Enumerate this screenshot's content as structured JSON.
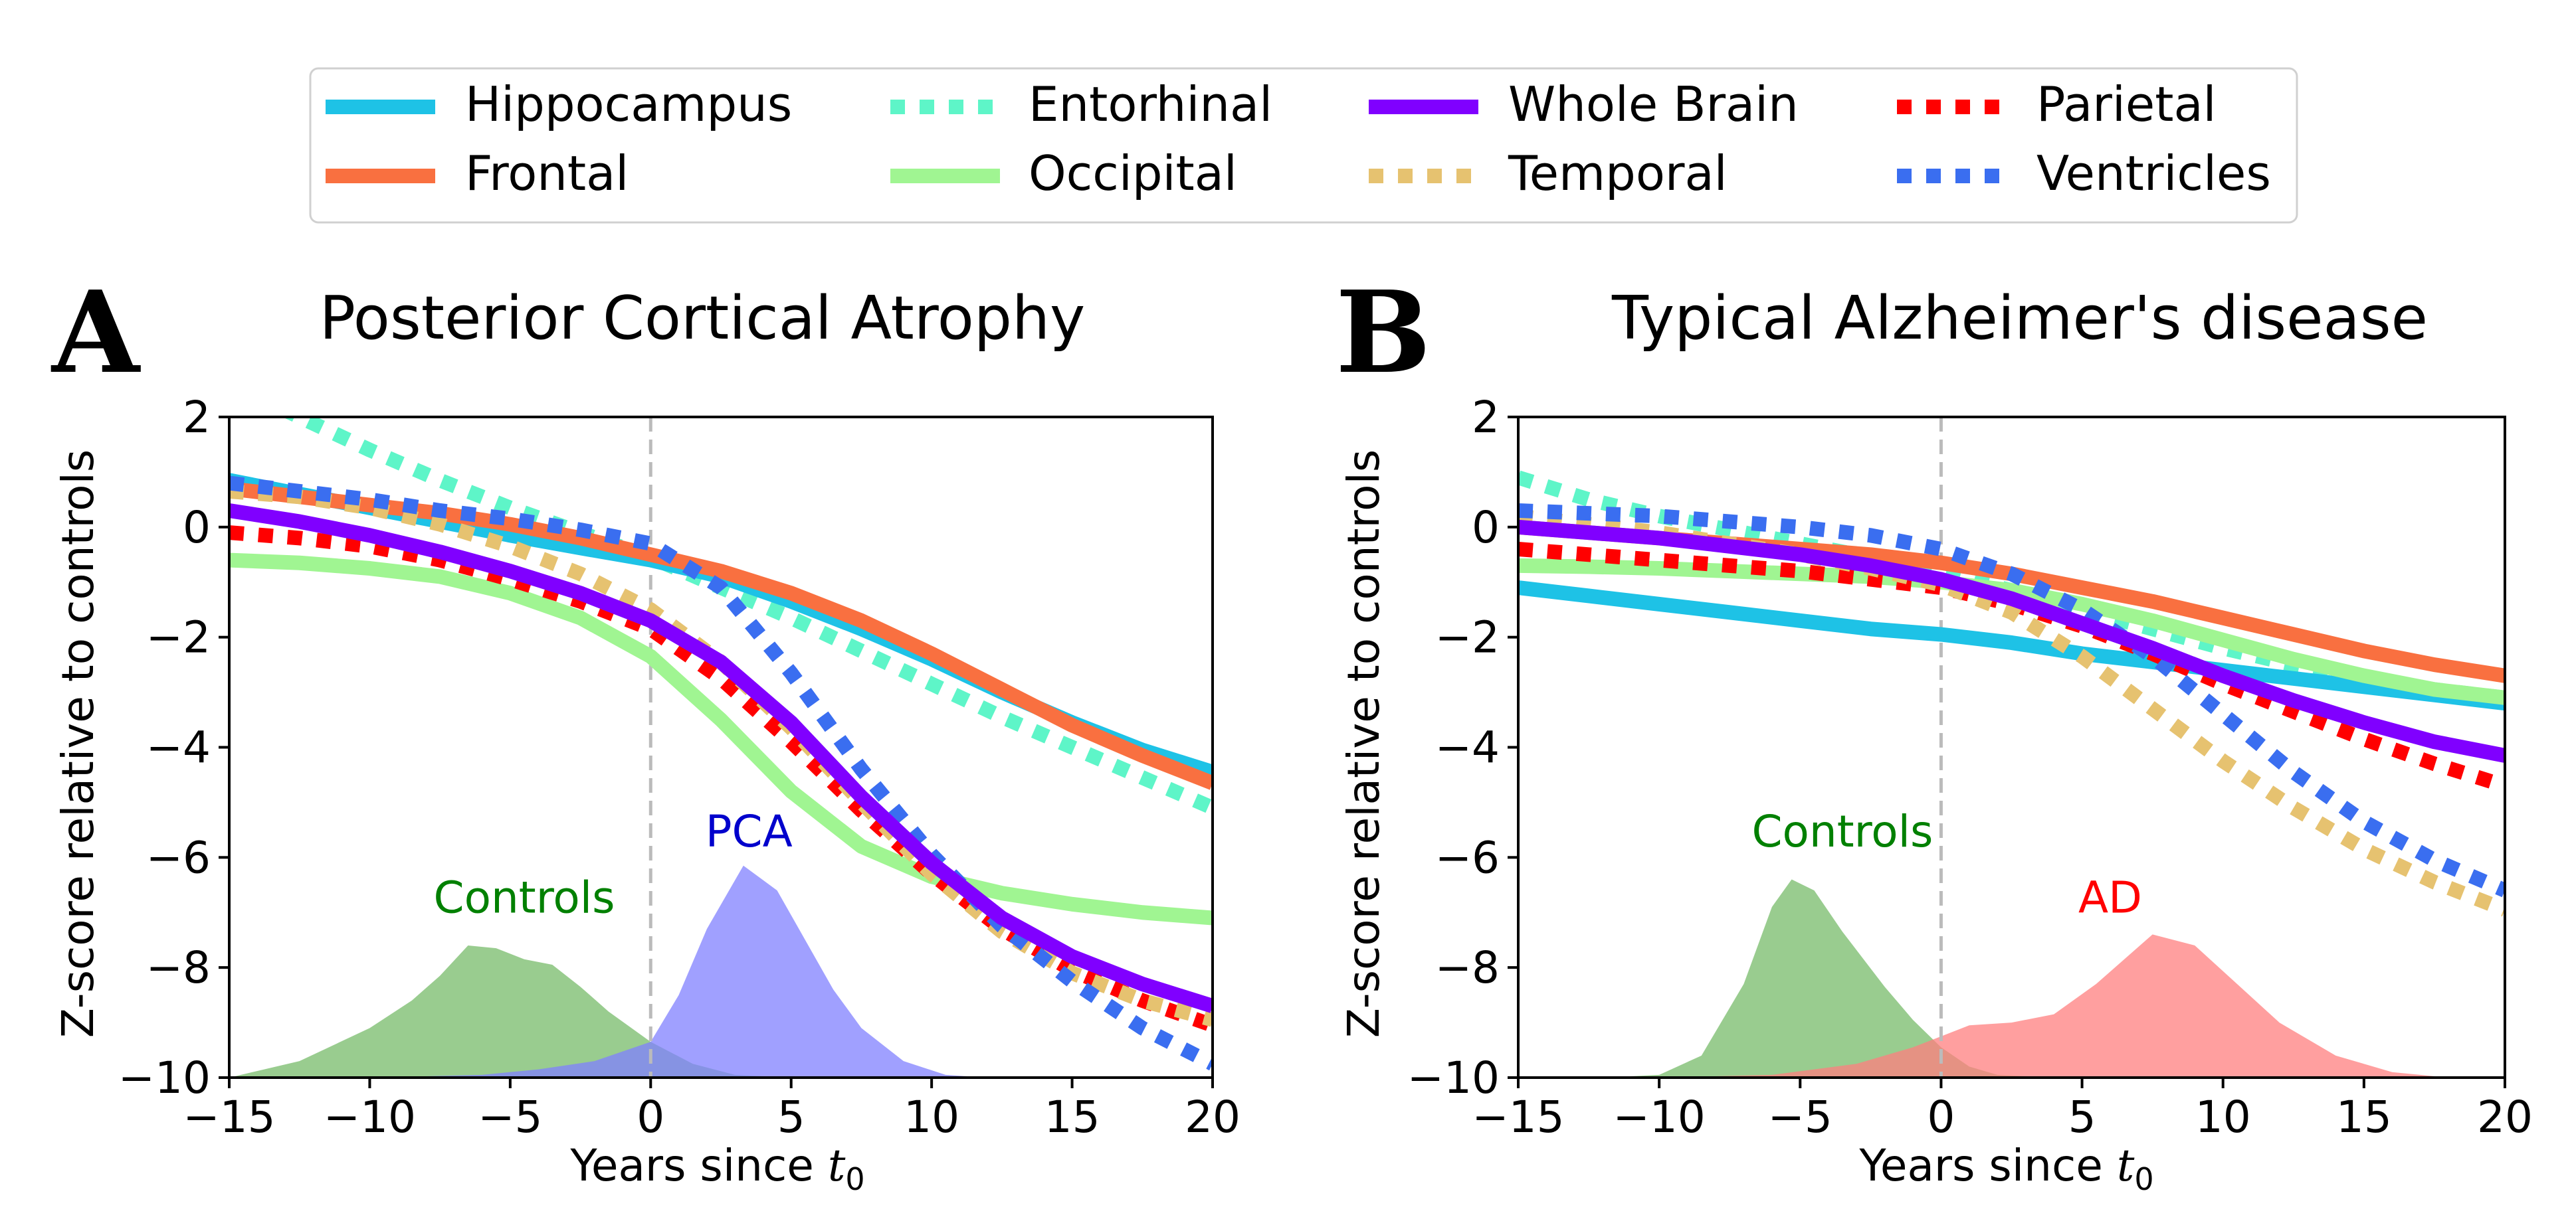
{
  "legend": {
    "placement": "top",
    "entries": [
      {
        "name": "Hippocampus",
        "color": "#1ec2e6",
        "style": "solid"
      },
      {
        "name": "Entorhinal",
        "color": "#5ef5c8",
        "style": "dotted"
      },
      {
        "name": "Whole Brain",
        "color": "#8000ff",
        "style": "solid"
      },
      {
        "name": "Parietal",
        "color": "#ff0000",
        "style": "dotted"
      },
      {
        "name": "Frontal",
        "color": "#f97040",
        "style": "solid"
      },
      {
        "name": "Occipital",
        "color": "#a0f592",
        "style": "solid"
      },
      {
        "name": "Temporal",
        "color": "#e6c270",
        "style": "dotted"
      },
      {
        "name": "Ventricles",
        "color": "#3a6ef0",
        "style": "dotted"
      }
    ]
  },
  "chart_data": [
    {
      "type": "line",
      "panel_letter": "A",
      "title": "Posterior Cortical Atrophy",
      "xlabel": "Years since ",
      "xlabel_math": "t",
      "xlabel_sub": "0",
      "ylabel": "Z-score relative to controls",
      "xlim": [
        -15,
        20
      ],
      "ylim": [
        -10,
        2
      ],
      "xticks": [
        -15,
        -10,
        -5,
        0,
        5,
        10,
        15,
        20
      ],
      "yticks": [
        -10,
        -8,
        -6,
        -4,
        -2,
        0,
        2
      ],
      "xtick_labels": [
        "−15",
        "−10",
        "−5",
        "0",
        "5",
        "10",
        "15",
        "20"
      ],
      "ytick_labels": [
        "−10",
        "−8",
        "−6",
        "−4",
        "−2",
        "0",
        "2"
      ],
      "vline": {
        "x": 0,
        "color": "#bbbbbb",
        "style": "dashed"
      },
      "x": [
        -15,
        -12.5,
        -10,
        -7.5,
        -5,
        -2.5,
        0,
        2.5,
        5,
        7.5,
        10,
        12.5,
        15,
        17.5,
        20
      ],
      "series": [
        {
          "name": "Entorhinal",
          "color": "#5ef5c8",
          "style": "dotted",
          "values": [
            2.6,
            2.0,
            1.4,
            0.85,
            0.35,
            -0.1,
            -0.55,
            -1.1,
            -1.65,
            -2.25,
            -2.85,
            -3.45,
            -4.0,
            -4.55,
            -5.1
          ]
        },
        {
          "name": "Hippocampus",
          "color": "#1ec2e6",
          "style": "solid",
          "values": [
            0.85,
            0.6,
            0.35,
            0.1,
            -0.15,
            -0.38,
            -0.6,
            -0.9,
            -1.35,
            -1.85,
            -2.4,
            -3.0,
            -3.55,
            -4.05,
            -4.45
          ]
        },
        {
          "name": "Frontal",
          "color": "#f97040",
          "style": "solid",
          "values": [
            0.7,
            0.55,
            0.4,
            0.25,
            0.05,
            -0.2,
            -0.5,
            -0.8,
            -1.2,
            -1.7,
            -2.3,
            -2.95,
            -3.6,
            -4.15,
            -4.65
          ]
        },
        {
          "name": "Occipital",
          "color": "#a0f592",
          "style": "solid",
          "values": [
            -0.6,
            -0.65,
            -0.75,
            -0.9,
            -1.2,
            -1.65,
            -2.35,
            -3.5,
            -4.8,
            -5.8,
            -6.35,
            -6.65,
            -6.85,
            -7.0,
            -7.1
          ]
        },
        {
          "name": "Parietal",
          "color": "#ff0000",
          "style": "dotted",
          "values": [
            -0.1,
            -0.2,
            -0.35,
            -0.6,
            -0.95,
            -1.35,
            -1.85,
            -2.75,
            -3.9,
            -5.15,
            -6.3,
            -7.3,
            -8.05,
            -8.6,
            -9.05
          ]
        },
        {
          "name": "Temporal",
          "color": "#e6c270",
          "style": "dotted",
          "values": [
            0.65,
            0.55,
            0.35,
            0.05,
            -0.35,
            -0.85,
            -1.5,
            -2.45,
            -3.65,
            -5.0,
            -6.3,
            -7.35,
            -8.1,
            -8.6,
            -8.95
          ]
        },
        {
          "name": "Ventricles",
          "color": "#3a6ef0",
          "style": "dotted",
          "values": [
            0.8,
            0.65,
            0.5,
            0.3,
            0.15,
            -0.05,
            -0.3,
            -1.1,
            -2.65,
            -4.4,
            -5.95,
            -7.25,
            -8.25,
            -9.1,
            -9.75
          ]
        },
        {
          "name": "Whole Brain",
          "color": "#8000ff",
          "style": "solid",
          "values": [
            0.3,
            0.1,
            -0.15,
            -0.45,
            -0.8,
            -1.2,
            -1.7,
            -2.45,
            -3.55,
            -4.9,
            -6.1,
            -7.1,
            -7.8,
            -8.3,
            -8.7
          ]
        }
      ],
      "densities": [
        {
          "label": "Controls",
          "color": "#77bb6a",
          "opacity": 0.75,
          "label_color": "#008000",
          "label_x": -4.5,
          "label_y": -7.0,
          "x": [
            -15,
            -12.5,
            -10,
            -8.5,
            -7.5,
            -6.5,
            -5.5,
            -4.5,
            -3.5,
            -2.5,
            -1.5,
            0,
            1.5,
            3,
            5,
            7
          ],
          "values": [
            -10.0,
            -9.7,
            -9.1,
            -8.6,
            -8.15,
            -7.6,
            -7.65,
            -7.85,
            -7.95,
            -8.35,
            -8.8,
            -9.35,
            -9.75,
            -9.95,
            -10.0,
            -10.0
          ]
        },
        {
          "label": "PCA",
          "color": "#8080ff",
          "opacity": 0.75,
          "label_color": "#0000cc",
          "label_x": 3.5,
          "label_y": -5.8,
          "x": [
            -15,
            -10,
            -6,
            -4,
            -2,
            0,
            1,
            2,
            3.3,
            4.5,
            5.5,
            6.5,
            7.5,
            9,
            10.5,
            12
          ],
          "values": [
            -10.0,
            -10.0,
            -9.95,
            -9.85,
            -9.7,
            -9.35,
            -8.5,
            -7.3,
            -6.15,
            -6.6,
            -7.5,
            -8.4,
            -9.1,
            -9.7,
            -9.95,
            -10.0
          ]
        }
      ]
    },
    {
      "type": "line",
      "panel_letter": "B",
      "title": "Typical Alzheimer's disease",
      "xlabel": "Years since ",
      "xlabel_math": "t",
      "xlabel_sub": "0",
      "ylabel": "Z-score relative to controls",
      "xlim": [
        -15,
        20
      ],
      "ylim": [
        -10,
        2
      ],
      "xticks": [
        -15,
        -10,
        -5,
        0,
        5,
        10,
        15,
        20
      ],
      "yticks": [
        -10,
        -8,
        -6,
        -4,
        -2,
        0,
        2
      ],
      "xtick_labels": [
        "−15",
        "−10",
        "−5",
        "0",
        "5",
        "10",
        "15",
        "20"
      ],
      "ytick_labels": [
        "−10",
        "−8",
        "−6",
        "−4",
        "−2",
        "0",
        "2"
      ],
      "vline": {
        "x": 0,
        "color": "#bbbbbb",
        "style": "dashed"
      },
      "x": [
        -15,
        -12.5,
        -10,
        -7.5,
        -5,
        -2.5,
        0,
        2.5,
        5,
        7.5,
        10,
        12.5,
        15,
        17.5,
        20
      ],
      "series": [
        {
          "name": "Entorhinal",
          "color": "#5ef5c8",
          "style": "dotted",
          "values": [
            0.9,
            0.5,
            0.2,
            -0.05,
            -0.3,
            -0.55,
            -0.85,
            -1.15,
            -1.5,
            -1.85,
            -2.2,
            -2.5,
            -2.75,
            -2.95,
            -3.1
          ]
        },
        {
          "name": "Hippocampus",
          "color": "#1ec2e6",
          "style": "solid",
          "values": [
            -1.1,
            -1.25,
            -1.4,
            -1.55,
            -1.7,
            -1.85,
            -1.95,
            -2.1,
            -2.3,
            -2.45,
            -2.6,
            -2.75,
            -2.9,
            -3.05,
            -3.2
          ]
        },
        {
          "name": "Frontal",
          "color": "#f97040",
          "style": "solid",
          "values": [
            0.0,
            -0.1,
            -0.2,
            -0.3,
            -0.4,
            -0.5,
            -0.65,
            -0.85,
            -1.1,
            -1.35,
            -1.65,
            -1.95,
            -2.25,
            -2.5,
            -2.7
          ]
        },
        {
          "name": "Occipital",
          "color": "#a0f592",
          "style": "solid",
          "values": [
            -0.7,
            -0.72,
            -0.75,
            -0.8,
            -0.85,
            -0.9,
            -1.0,
            -1.15,
            -1.4,
            -1.7,
            -2.05,
            -2.4,
            -2.7,
            -2.95,
            -3.1
          ]
        },
        {
          "name": "Parietal",
          "color": "#ff0000",
          "style": "dotted",
          "values": [
            -0.4,
            -0.5,
            -0.6,
            -0.7,
            -0.8,
            -0.95,
            -1.1,
            -1.4,
            -1.8,
            -2.3,
            -2.85,
            -3.35,
            -3.85,
            -4.3,
            -4.7
          ]
        },
        {
          "name": "Temporal",
          "color": "#e6c270",
          "style": "dotted",
          "values": [
            0.2,
            0.05,
            -0.1,
            -0.3,
            -0.5,
            -0.75,
            -1.05,
            -1.55,
            -2.35,
            -3.3,
            -4.25,
            -5.1,
            -5.85,
            -6.45,
            -6.95
          ]
        },
        {
          "name": "Ventricles",
          "color": "#3a6ef0",
          "style": "dotted",
          "values": [
            0.3,
            0.25,
            0.2,
            0.1,
            0.0,
            -0.15,
            -0.4,
            -0.85,
            -1.5,
            -2.35,
            -3.4,
            -4.45,
            -5.35,
            -6.05,
            -6.6
          ]
        },
        {
          "name": "Whole Brain",
          "color": "#8000ff",
          "style": "solid",
          "values": [
            0.0,
            -0.1,
            -0.2,
            -0.35,
            -0.5,
            -0.7,
            -0.95,
            -1.3,
            -1.75,
            -2.2,
            -2.7,
            -3.15,
            -3.55,
            -3.9,
            -4.15
          ]
        }
      ],
      "densities": [
        {
          "label": "Controls",
          "color": "#77bb6a",
          "opacity": 0.75,
          "label_color": "#008000",
          "label_x": -3.5,
          "label_y": -5.8,
          "x": [
            -15,
            -12,
            -10,
            -8.5,
            -7,
            -6,
            -5.3,
            -4.5,
            -3.5,
            -2,
            -1,
            0,
            1,
            2,
            4,
            6
          ],
          "values": [
            -10.0,
            -10.0,
            -9.95,
            -9.6,
            -8.3,
            -6.9,
            -6.4,
            -6.6,
            -7.35,
            -8.35,
            -8.95,
            -9.45,
            -9.8,
            -9.95,
            -10.0,
            -10.0
          ]
        },
        {
          "label": "AD",
          "color": "#ff7f7f",
          "opacity": 0.75,
          "label_color": "#ff0000",
          "label_x": 6.0,
          "label_y": -7.0,
          "x": [
            -15,
            -10,
            -6,
            -3,
            -1,
            0,
            1,
            2.5,
            4,
            5.5,
            7.5,
            9,
            10.5,
            12,
            14,
            16,
            18
          ],
          "values": [
            -10.0,
            -10.0,
            -9.95,
            -9.75,
            -9.45,
            -9.25,
            -9.05,
            -9.0,
            -8.85,
            -8.3,
            -7.4,
            -7.6,
            -8.3,
            -9.0,
            -9.6,
            -9.9,
            -10.0
          ]
        }
      ]
    }
  ]
}
